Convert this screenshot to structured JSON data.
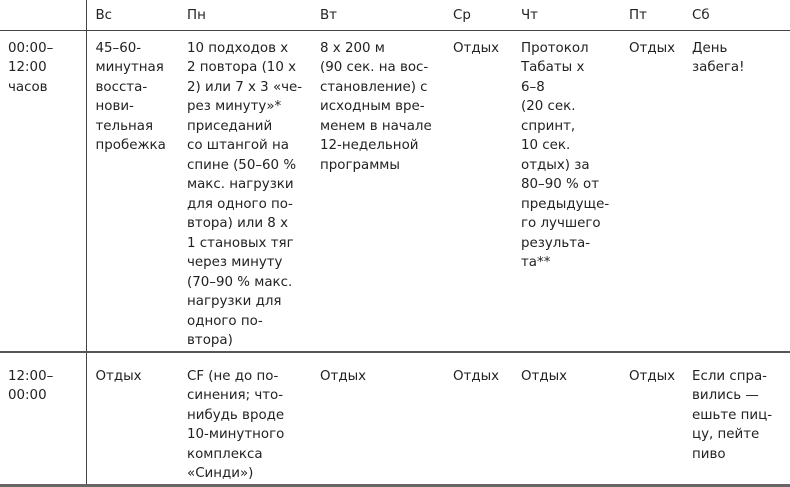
{
  "table": {
    "headers": [
      "",
      "Вс",
      "Пн",
      "Вт",
      "Ср",
      "Чт",
      "Пт",
      "Сб"
    ],
    "rows": [
      {
        "time": "00:00–\n12:00\nчасов",
        "cells": [
          "45–60-\nминутная\nвосста-\nнови-\nтельная\nпробежка",
          "10 подходов х\n2 повтора (10 х\n2) или 7 х 3 «че-\nрез минуту»*\nприседаний\nсо штангой на\nспине (50–60 %\nмакс. нагрузки\nдля одного по-\nвтора) или 8 х\n1 становых тяг\nчерез минуту\n(70–90 % макс.\nнагрузки для\nодного по-\nвтора)",
          "8 х 200 м\n(90 сек. на вос-\nстановление) с\nисходным вре-\nменем в начале\n12-недельной\nпрограммы",
          "Отдых",
          "Протокол\nТабаты х\n6–8\n(20 сек.\nспринт,\n10 сек.\nотдых) за\n80–90 % от\nпредыдуще-\nго лучшего\nрезульта-\nта**",
          "Отдых",
          "День\nзабега!"
        ]
      },
      {
        "time": "12:00–\n00:00",
        "cells": [
          "Отдых",
          "CF (не до по-\nсинения; что-\nнибудь вроде\n10-минутного\nкомплекса\n«Синди»)",
          "Отдых",
          "Отдых",
          "Отдых",
          "Отдых",
          "Если спра-\nвились —\nешьте пиц-\nцу, пейте\nпиво"
        ]
      }
    ]
  }
}
